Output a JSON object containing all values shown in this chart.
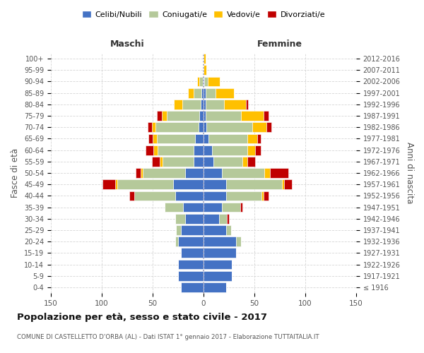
{
  "age_groups": [
    "100+",
    "95-99",
    "90-94",
    "85-89",
    "80-84",
    "75-79",
    "70-74",
    "65-69",
    "60-64",
    "55-59",
    "50-54",
    "45-49",
    "40-44",
    "35-39",
    "30-34",
    "25-29",
    "20-24",
    "15-19",
    "10-14",
    "5-9",
    "0-4"
  ],
  "birth_years": [
    "≤ 1916",
    "1917-1921",
    "1922-1926",
    "1927-1931",
    "1932-1936",
    "1937-1941",
    "1942-1946",
    "1947-1951",
    "1952-1956",
    "1957-1961",
    "1962-1966",
    "1967-1971",
    "1972-1976",
    "1977-1981",
    "1982-1986",
    "1987-1991",
    "1992-1996",
    "1997-2001",
    "2002-2006",
    "2007-2011",
    "2012-2016"
  ],
  "colors": {
    "celibi": "#4472c4",
    "coniugati": "#b5c99a",
    "vedovi": "#ffc000",
    "divorziati": "#c00000"
  },
  "male": {
    "celibi": [
      1,
      1,
      1,
      2,
      3,
      4,
      5,
      8,
      10,
      10,
      18,
      30,
      28,
      20,
      18,
      22,
      25,
      22,
      25,
      25,
      22
    ],
    "coniugati": [
      0,
      0,
      3,
      8,
      18,
      32,
      42,
      38,
      35,
      30,
      42,
      55,
      40,
      18,
      10,
      5,
      3,
      0,
      0,
      0,
      0
    ],
    "vedovi": [
      0,
      0,
      2,
      5,
      8,
      5,
      4,
      4,
      4,
      3,
      2,
      2,
      0,
      0,
      0,
      0,
      0,
      0,
      0,
      0,
      0
    ],
    "divorziati": [
      0,
      0,
      0,
      0,
      0,
      5,
      4,
      4,
      8,
      8,
      5,
      12,
      5,
      0,
      0,
      0,
      0,
      0,
      0,
      0,
      0
    ]
  },
  "female": {
    "celibi": [
      0,
      0,
      1,
      2,
      2,
      2,
      3,
      5,
      8,
      10,
      18,
      22,
      22,
      18,
      15,
      22,
      32,
      32,
      28,
      28,
      22
    ],
    "coniugati": [
      0,
      0,
      3,
      10,
      18,
      35,
      45,
      38,
      35,
      28,
      42,
      55,
      35,
      18,
      8,
      5,
      5,
      0,
      0,
      0,
      0
    ],
    "vedovi": [
      2,
      3,
      12,
      18,
      22,
      22,
      14,
      10,
      8,
      5,
      5,
      2,
      2,
      0,
      0,
      0,
      0,
      0,
      0,
      0,
      0
    ],
    "divorziati": [
      0,
      0,
      0,
      0,
      2,
      5,
      5,
      3,
      5,
      8,
      18,
      8,
      5,
      2,
      2,
      0,
      0,
      0,
      0,
      0,
      0
    ]
  },
  "xlim": 150,
  "title": "Popolazione per età, sesso e stato civile - 2017",
  "subtitle": "COMUNE DI CASTELLETTO D'ORBA (AL) - Dati ISTAT 1° gennaio 2017 - Elaborazione TUTTAITALIA.IT",
  "xlabel_left": "Maschi",
  "xlabel_right": "Femmine",
  "ylabel_left": "Fasce di età",
  "ylabel_right": "Anni di nascita",
  "background_color": "#ffffff",
  "grid_color": "#cccccc"
}
